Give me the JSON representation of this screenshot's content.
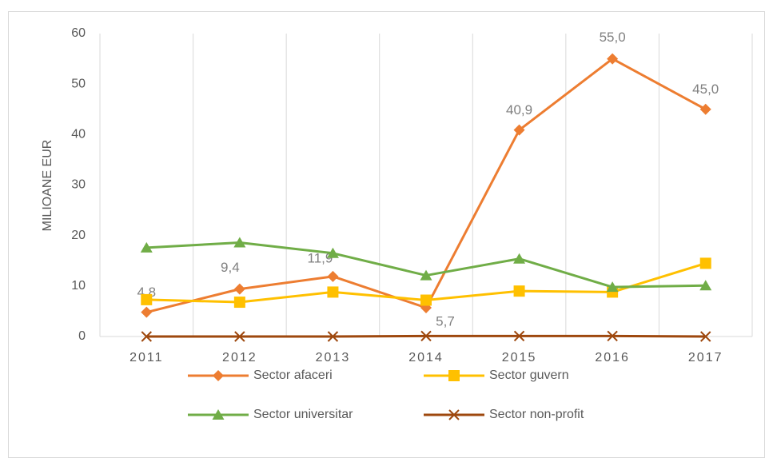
{
  "chart_data": {
    "type": "line",
    "y_label": "MILIOANE EUR",
    "categories": [
      "2011",
      "2012",
      "2013",
      "2014",
      "2015",
      "2016",
      "2017"
    ],
    "ylim": [
      0,
      60
    ],
    "yticks": [
      0,
      10,
      20,
      30,
      40,
      50,
      60
    ],
    "grid": true,
    "series": [
      {
        "name": "Sector afaceri",
        "color": "#ED7D31",
        "marker": "diamond",
        "values": [
          4.8,
          9.4,
          11.9,
          5.7,
          40.9,
          55.0,
          45.0
        ],
        "value_labels": [
          "4,8",
          "9,4",
          "11,9",
          "5,7",
          "40,9",
          "55,0",
          "45,0"
        ]
      },
      {
        "name": "Sector guvern",
        "color": "#FFC000",
        "marker": "square",
        "values": [
          7.3,
          6.8,
          8.8,
          7.2,
          9.0,
          8.8,
          14.5
        ]
      },
      {
        "name": "Sector universitar",
        "color": "#70AD47",
        "marker": "triangle",
        "values": [
          17.6,
          18.6,
          16.5,
          12.1,
          15.4,
          9.8,
          10.1
        ]
      },
      {
        "name": "Sector non-profit",
        "color": "#9E480E",
        "marker": "x",
        "values": [
          0,
          0,
          0,
          0.1,
          0.1,
          0.1,
          0
        ]
      }
    ],
    "legend": "bottom"
  }
}
